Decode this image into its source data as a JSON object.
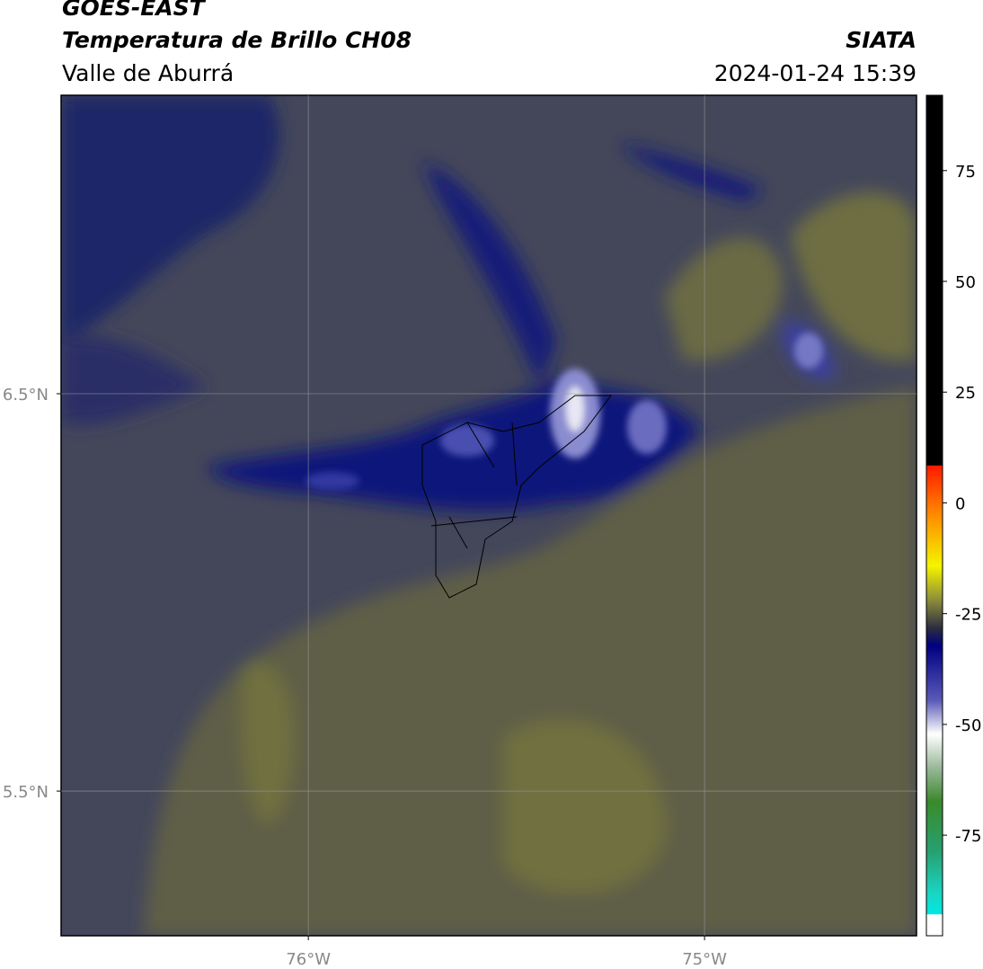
{
  "header": {
    "title": "GOES-EAST",
    "subtitle": "Temperatura de Brillo CH08",
    "region": "Valle de Aburrá",
    "source": "SIATA",
    "datetime": "2024-01-24 15:39"
  },
  "map": {
    "lon_range": [
      -76.624,
      -74.465
    ],
    "lat_range": [
      5.136,
      7.251
    ],
    "lon_ticks": [
      {
        "value": -76,
        "label": "76°W"
      },
      {
        "value": -75,
        "label": "75°W"
      }
    ],
    "lat_ticks": [
      {
        "value": 6.5,
        "label": "6.5°N"
      },
      {
        "value": 5.5,
        "label": "5.5°N"
      }
    ]
  },
  "colorbar": {
    "range": [
      -97.7,
      92
    ],
    "ticks": [
      75,
      50,
      25,
      0,
      -25,
      -50,
      -75
    ]
  }
}
